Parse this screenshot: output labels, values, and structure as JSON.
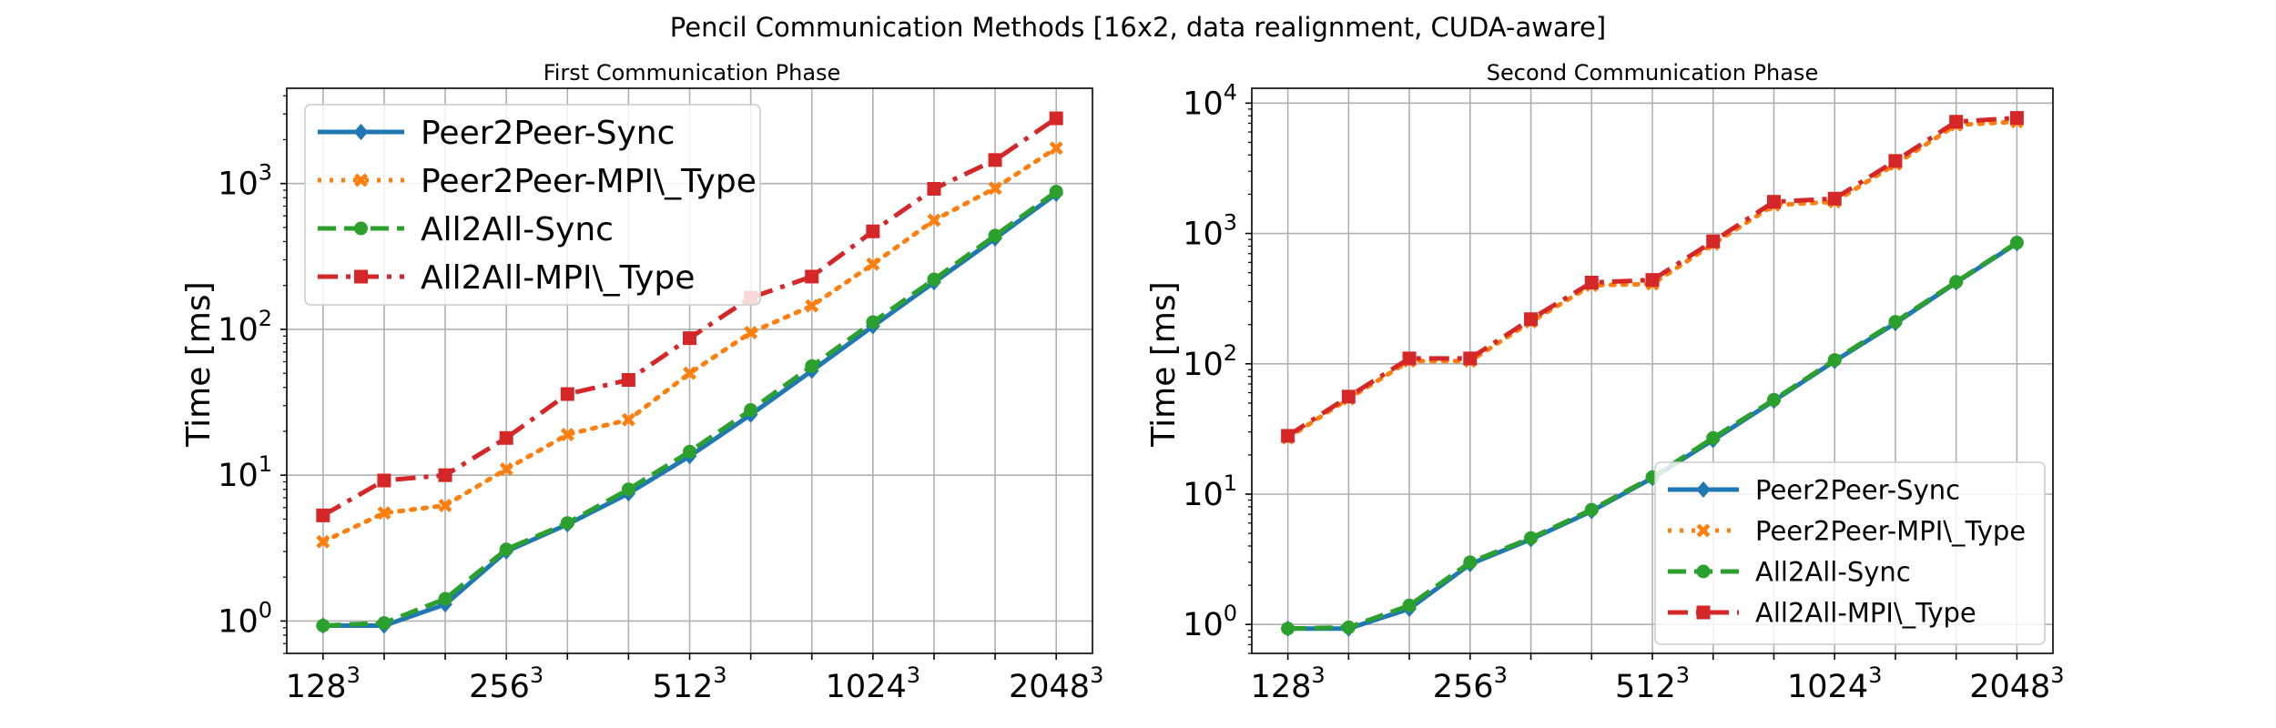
{
  "figure": {
    "title": "Pencil Communication Methods [16x2, data realignment, CUDA-aware]"
  },
  "colors": {
    "Peer2Peer-Sync": "#1f77b4",
    "Peer2Peer-MPI\\_Type": "#ff7f0e",
    "All2All-Sync": "#2ca02c",
    "All2All-MPI\\_Type": "#d62728"
  },
  "chart_data": [
    {
      "type": "line",
      "title": "First Communication Phase",
      "xlabel": "",
      "ylabel": "Time [ms]",
      "yscale": "log",
      "ylim": [
        0.6,
        4500
      ],
      "grid": true,
      "legend_position": "top-left",
      "x_tick_labels": [
        {
          "base": "128",
          "exp": "3",
          "index": 0
        },
        {
          "base": "256",
          "exp": "3",
          "index": 3
        },
        {
          "base": "512",
          "exp": "3",
          "index": 6
        },
        {
          "base": "1024",
          "exp": "3",
          "index": 9
        },
        {
          "base": "2048",
          "exp": "3",
          "index": 12
        }
      ],
      "y_tick_labels": [
        {
          "base": "10",
          "exp": "0",
          "value": 1
        },
        {
          "base": "10",
          "exp": "1",
          "value": 10
        },
        {
          "base": "10",
          "exp": "2",
          "value": 100
        },
        {
          "base": "10",
          "exp": "3",
          "value": 1000
        }
      ],
      "series": [
        {
          "name": "Peer2Peer-Sync",
          "marker": "diamond",
          "linestyle": "solid",
          "values": [
            0.93,
            0.93,
            1.3,
            3.0,
            4.6,
            7.5,
            13.5,
            26,
            52,
            105,
            210,
            420,
            850
          ]
        },
        {
          "name": "Peer2Peer-MPI\\_Type",
          "marker": "x",
          "linestyle": "dotted",
          "values": [
            3.5,
            5.5,
            6.2,
            11,
            19,
            24,
            50,
            95,
            145,
            280,
            560,
            930,
            1750
          ]
        },
        {
          "name": "All2All-Sync",
          "marker": "circle",
          "linestyle": "dashed",
          "values": [
            0.93,
            0.97,
            1.42,
            3.1,
            4.7,
            8.0,
            14.5,
            28,
            56,
            112,
            220,
            440,
            880
          ]
        },
        {
          "name": "All2All-MPI\\_Type",
          "marker": "square",
          "linestyle": "dashdot",
          "values": [
            5.3,
            9.2,
            10,
            18,
            36,
            45,
            87,
            165,
            230,
            470,
            920,
            1450,
            2800
          ]
        }
      ]
    },
    {
      "type": "line",
      "title": "Second Communication Phase",
      "xlabel": "",
      "ylabel": "Time [ms]",
      "yscale": "log",
      "ylim": [
        0.6,
        13000
      ],
      "grid": true,
      "legend_position": "bottom-right",
      "x_tick_labels": [
        {
          "base": "128",
          "exp": "3",
          "index": 0
        },
        {
          "base": "256",
          "exp": "3",
          "index": 3
        },
        {
          "base": "512",
          "exp": "3",
          "index": 6
        },
        {
          "base": "1024",
          "exp": "3",
          "index": 9
        },
        {
          "base": "2048",
          "exp": "3",
          "index": 12
        }
      ],
      "y_tick_labels": [
        {
          "base": "10",
          "exp": "0",
          "value": 1
        },
        {
          "base": "10",
          "exp": "1",
          "value": 10
        },
        {
          "base": "10",
          "exp": "2",
          "value": 100
        },
        {
          "base": "10",
          "exp": "3",
          "value": 1000
        },
        {
          "base": "10",
          "exp": "4",
          "value": 10000
        }
      ],
      "series": [
        {
          "name": "Peer2Peer-Sync",
          "marker": "diamond",
          "linestyle": "solid",
          "values": [
            0.93,
            0.93,
            1.32,
            2.9,
            4.5,
            7.4,
            13.3,
            26,
            52,
            105,
            205,
            420,
            840
          ]
        },
        {
          "name": "Peer2Peer-MPI\\_Type",
          "marker": "x",
          "linestyle": "dotted",
          "values": [
            27,
            54,
            105,
            105,
            210,
            400,
            410,
            830,
            1650,
            1750,
            3400,
            6800,
            7200
          ]
        },
        {
          "name": "All2All-Sync",
          "marker": "circle",
          "linestyle": "dashed",
          "values": [
            0.93,
            0.95,
            1.4,
            3.0,
            4.6,
            7.6,
            13.5,
            27,
            53,
            107,
            210,
            425,
            850
          ]
        },
        {
          "name": "All2All-MPI\\_Type",
          "marker": "square",
          "linestyle": "dashdot",
          "values": [
            28,
            56,
            110,
            110,
            220,
            420,
            440,
            870,
            1750,
            1850,
            3600,
            7200,
            7700
          ]
        }
      ]
    }
  ]
}
